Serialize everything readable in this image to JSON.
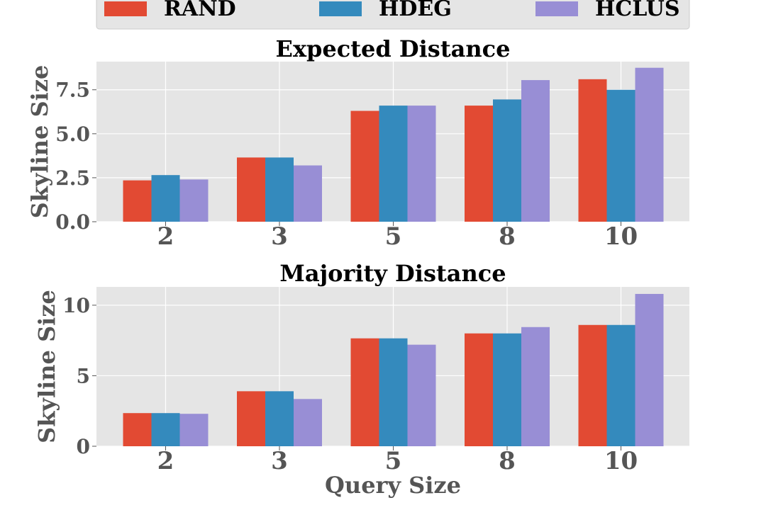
{
  "legend": {
    "items": [
      {
        "label": "RAND",
        "color": "#E24A33"
      },
      {
        "label": "HDEG",
        "color": "#348ABD"
      },
      {
        "label": "HCLUS",
        "color": "#988ED5"
      }
    ]
  },
  "chart_data": [
    {
      "type": "bar",
      "title": "Expected Distance",
      "xlabel": "",
      "ylabel": "Skyline Size",
      "categories": [
        "2",
        "3",
        "5",
        "8",
        "10"
      ],
      "ylim": [
        0,
        9.1
      ],
      "yticks": [
        0,
        2.5,
        5,
        7.5
      ],
      "ytick_labels": [
        "0.0",
        "2.5",
        "5.0",
        "7.5"
      ],
      "grid": true,
      "series": [
        {
          "name": "RAND",
          "values": [
            2.35,
            3.65,
            6.3,
            6.6,
            8.1
          ]
        },
        {
          "name": "HDEG",
          "values": [
            2.65,
            3.65,
            6.6,
            6.95,
            7.5
          ]
        },
        {
          "name": "HCLUS",
          "values": [
            2.4,
            3.2,
            6.6,
            8.05,
            8.75
          ]
        }
      ]
    },
    {
      "type": "bar",
      "title": "Majority Distance",
      "xlabel": "Query Size",
      "ylabel": "Skyline Size",
      "categories": [
        "2",
        "3",
        "5",
        "8",
        "10"
      ],
      "ylim": [
        0,
        11.3
      ],
      "yticks": [
        0,
        5,
        10
      ],
      "ytick_labels": [
        "0",
        "5",
        "10"
      ],
      "grid": true,
      "series": [
        {
          "name": "RAND",
          "values": [
            2.35,
            3.9,
            7.65,
            8.0,
            8.6
          ]
        },
        {
          "name": "HDEG",
          "values": [
            2.35,
            3.9,
            7.65,
            8.0,
            8.6
          ]
        },
        {
          "name": "HCLUS",
          "values": [
            2.3,
            3.35,
            7.2,
            8.45,
            10.8
          ]
        }
      ]
    }
  ]
}
